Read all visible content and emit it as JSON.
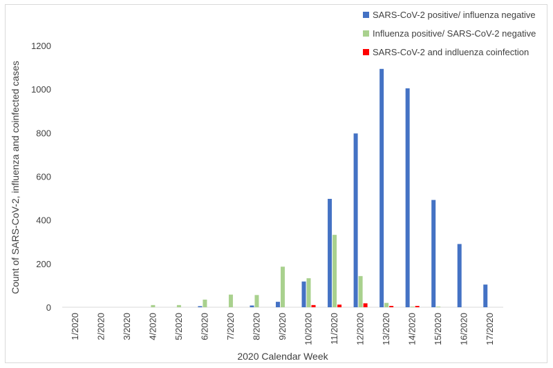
{
  "chart_data": {
    "type": "bar",
    "title": "",
    "xlabel": "2020 Calendar  Week",
    "ylabel": "Count of SARS-CoV-2, influenza and coinfected cases",
    "ylim": [
      0,
      1200
    ],
    "yticks": [
      0,
      200,
      400,
      600,
      800,
      1000,
      1200
    ],
    "grid": false,
    "legend_position": "top-right",
    "categories": [
      "1/2020",
      "2/2020",
      "3/2020",
      "4/2020",
      "5/2020",
      "6/2020",
      "7/2020",
      "8/2020",
      "9/2020",
      "10/2020",
      "11/2020",
      "12/2020",
      "13/2020",
      "14/2020",
      "15/2020",
      "16/2020",
      "17/2020"
    ],
    "series": [
      {
        "name": "SARS-CoV-2 positive/ influenza negative",
        "color": "#4472c4",
        "values": [
          0,
          0,
          0,
          0,
          0,
          5,
          0,
          8,
          25,
          118,
          497,
          797,
          1093,
          1004,
          492,
          290,
          104
        ]
      },
      {
        "name": "Influenza positive/ SARS-CoV-2 negative",
        "color": "#a9d18e",
        "values": [
          0,
          0,
          0,
          10,
          10,
          35,
          58,
          56,
          186,
          133,
          332,
          143,
          20,
          3,
          3,
          0,
          0
        ]
      },
      {
        "name": "SARS-CoV-2 and indluenza coinfection",
        "color": "#ff0000",
        "values": [
          0,
          0,
          0,
          0,
          0,
          0,
          0,
          0,
          0,
          10,
          12,
          18,
          6,
          6,
          0,
          0,
          0
        ]
      }
    ]
  }
}
